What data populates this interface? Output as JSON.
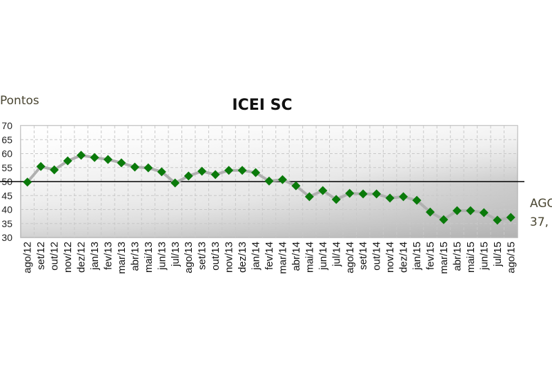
{
  "chart_data": {
    "type": "line",
    "title": "ICEI SC",
    "ylabel": "Pontos",
    "xlabel": "",
    "ylim": [
      30,
      70
    ],
    "yticks": [
      30,
      35,
      40,
      45,
      50,
      55,
      60,
      65,
      70
    ],
    "grid": true,
    "reference_line": 50,
    "categories": [
      "ago/12",
      "set/12",
      "out/12",
      "nov/12",
      "dez/12",
      "jan/13",
      "fev/13",
      "mar/13",
      "abr/13",
      "mai/13",
      "jun/13",
      "jul/13",
      "ago/13",
      "set/13",
      "out/13",
      "nov/13",
      "dez/13",
      "jan/14",
      "fev/14",
      "mar/14",
      "abr/14",
      "mai/14",
      "jun/14",
      "jul/14",
      "ago/14",
      "set/14",
      "out/14",
      "nov/14",
      "dez/14",
      "jan/15",
      "fev/15",
      "mar/15",
      "abr/15",
      "mai/15",
      "jun/15",
      "jul/15",
      "ago/15"
    ],
    "series": [
      {
        "name": "ICEI SC",
        "color": "#0a7a0a",
        "line_color": "#b0b0b0",
        "values": [
          49.8,
          55.4,
          54.2,
          57.4,
          59.4,
          58.6,
          57.9,
          56.7,
          55.2,
          54.9,
          53.5,
          49.5,
          52.0,
          53.7,
          52.5,
          54.0,
          54.0,
          53.2,
          50.2,
          50.7,
          48.5,
          44.6,
          46.8,
          43.6,
          45.8,
          45.6,
          45.6,
          44.1,
          44.6,
          43.3,
          39.1,
          36.4,
          39.6,
          39.6,
          38.9,
          36.2,
          37.2
        ]
      }
    ],
    "annotation": {
      "line1": "AGO",
      "line2": "37,"
    }
  }
}
